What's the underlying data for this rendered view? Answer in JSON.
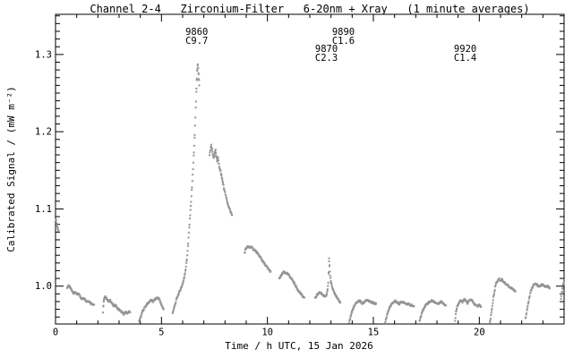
{
  "window": {
    "background": "#ffffff"
  },
  "chart_data": {
    "type": "scatter",
    "title": "Channel 2-4   Zirconium-Filter   6-20nm + Xray   (1 minute averages)",
    "xlabel": "Time / h UTC, 15 Jan 2026",
    "ylabel": "Calibrated Signal / (mW m⁻²)",
    "xlim": [
      0,
      24
    ],
    "ylim": [
      0.951,
      1.352
    ],
    "x_major_ticks": [
      0,
      5,
      10,
      15,
      20
    ],
    "x_tick_labels": [
      "0",
      "5",
      "10",
      "15",
      "20"
    ],
    "x_minor_step": 1,
    "y_major_ticks": [
      1.0,
      1.1,
      1.2,
      1.3
    ],
    "y_tick_labels": [
      "1.0",
      "1.1",
      "1.2",
      "1.3"
    ],
    "y_minor_step": 0.01,
    "grid": false,
    "legend": "none",
    "marker": "square-dot",
    "marker_size_px": 2,
    "sample_interval_h": 0.01667,
    "noise_amp": 0.0012,
    "colors": {
      "points": "#949494",
      "frame": "#000000",
      "text": "#000000",
      "background": "#ffffff"
    },
    "annotations": [
      {
        "region": "9860",
        "class": "C9.7",
        "t": 6.13,
        "row": 0
      },
      {
        "region": "9890",
        "class": "C1.6",
        "t": 13.05,
        "row": 0
      },
      {
        "region": "9870",
        "class": "C2.3",
        "t": 12.25,
        "row": 1
      },
      {
        "region": "9920",
        "class": "C1.4",
        "t": 18.8,
        "row": 1
      }
    ],
    "series": [
      {
        "name": "segment-01",
        "points": [
          [
            0.02,
            1.087
          ],
          [
            0.05,
            1.083
          ],
          [
            0.08,
            1.078
          ],
          [
            0.11,
            1.074
          ],
          [
            0.14,
            1.072
          ]
        ]
      },
      {
        "name": "segment-02",
        "points": [
          [
            0.55,
            0.998
          ],
          [
            0.62,
            1.0
          ],
          [
            0.7,
            0.998
          ],
          [
            0.78,
            0.994
          ],
          [
            0.86,
            0.991
          ],
          [
            0.94,
            0.992
          ],
          [
            1.02,
            0.989
          ],
          [
            1.1,
            0.99
          ],
          [
            1.18,
            0.986
          ],
          [
            1.26,
            0.983
          ],
          [
            1.34,
            0.985
          ],
          [
            1.42,
            0.982
          ],
          [
            1.5,
            0.98
          ],
          [
            1.58,
            0.981
          ],
          [
            1.66,
            0.978
          ],
          [
            1.74,
            0.977
          ],
          [
            1.82,
            0.976
          ]
        ]
      },
      {
        "name": "segment-03",
        "points": [
          [
            2.24,
            0.966
          ],
          [
            2.26,
            0.974
          ],
          [
            2.28,
            0.982
          ],
          [
            2.33,
            0.986
          ],
          [
            2.42,
            0.984
          ],
          [
            2.5,
            0.98
          ],
          [
            2.58,
            0.982
          ],
          [
            2.66,
            0.978
          ],
          [
            2.74,
            0.974
          ],
          [
            2.82,
            0.976
          ],
          [
            2.9,
            0.972
          ],
          [
            2.98,
            0.97
          ],
          [
            3.06,
            0.968
          ],
          [
            3.14,
            0.966
          ],
          [
            3.22,
            0.964
          ],
          [
            3.3,
            0.966
          ],
          [
            3.38,
            0.965
          ],
          [
            3.46,
            0.967
          ],
          [
            3.52,
            0.966
          ]
        ]
      },
      {
        "name": "segment-04",
        "points": [
          [
            3.93,
            0.952
          ],
          [
            3.98,
            0.957
          ],
          [
            4.04,
            0.962
          ],
          [
            4.12,
            0.968
          ],
          [
            4.2,
            0.972
          ],
          [
            4.3,
            0.976
          ],
          [
            4.4,
            0.979
          ],
          [
            4.5,
            0.982
          ],
          [
            4.6,
            0.98
          ],
          [
            4.7,
            0.983
          ],
          [
            4.8,
            0.985
          ],
          [
            4.88,
            0.984
          ],
          [
            4.94,
            0.98
          ],
          [
            5.0,
            0.976
          ],
          [
            5.06,
            0.972
          ],
          [
            5.1,
            0.97
          ]
        ]
      },
      {
        "name": "segment-05-flare",
        "points": [
          [
            5.53,
            0.966
          ],
          [
            5.6,
            0.972
          ],
          [
            5.68,
            0.98
          ],
          [
            5.76,
            0.987
          ],
          [
            5.84,
            0.992
          ],
          [
            5.9,
            0.996
          ],
          [
            5.96,
            1.0
          ],
          [
            6.02,
            1.005
          ],
          [
            6.08,
            1.012
          ],
          [
            6.14,
            1.022
          ],
          [
            6.2,
            1.035
          ],
          [
            6.26,
            1.055
          ],
          [
            6.32,
            1.08
          ],
          [
            6.38,
            1.103
          ],
          [
            6.44,
            1.128
          ],
          [
            6.49,
            1.152
          ],
          [
            6.53,
            1.172
          ],
          [
            6.57,
            1.196
          ],
          [
            6.6,
            1.218
          ],
          [
            6.63,
            1.24
          ],
          [
            6.65,
            1.255
          ],
          [
            6.67,
            1.268
          ],
          [
            6.69,
            1.28
          ],
          [
            6.71,
            1.287
          ],
          [
            6.73,
            1.282
          ],
          [
            6.75,
            1.274
          ],
          [
            6.77,
            1.266
          ],
          [
            6.78,
            1.26
          ]
        ]
      },
      {
        "name": "segment-06",
        "points": [
          [
            7.27,
            1.17
          ],
          [
            7.31,
            1.176
          ],
          [
            7.35,
            1.182
          ],
          [
            7.39,
            1.176
          ],
          [
            7.43,
            1.17
          ],
          [
            7.47,
            1.166
          ],
          [
            7.51,
            1.172
          ],
          [
            7.55,
            1.176
          ],
          [
            7.59,
            1.168
          ],
          [
            7.63,
            1.162
          ],
          [
            7.67,
            1.166
          ],
          [
            7.71,
            1.158
          ],
          [
            7.75,
            1.152
          ],
          [
            7.79,
            1.148
          ],
          [
            7.83,
            1.143
          ],
          [
            7.87,
            1.138
          ],
          [
            7.91,
            1.132
          ],
          [
            7.95,
            1.127
          ],
          [
            8.0,
            1.121
          ],
          [
            8.05,
            1.115
          ],
          [
            8.1,
            1.11
          ],
          [
            8.15,
            1.105
          ],
          [
            8.2,
            1.101
          ],
          [
            8.25,
            1.097
          ],
          [
            8.3,
            1.094
          ],
          [
            8.33,
            1.092
          ]
        ]
      },
      {
        "name": "segment-07",
        "points": [
          [
            8.92,
            1.043
          ],
          [
            8.97,
            1.048
          ],
          [
            9.02,
            1.05
          ],
          [
            9.08,
            1.051
          ],
          [
            9.15,
            1.05
          ],
          [
            9.22,
            1.051
          ],
          [
            9.3,
            1.049
          ],
          [
            9.38,
            1.047
          ],
          [
            9.46,
            1.045
          ],
          [
            9.54,
            1.042
          ],
          [
            9.62,
            1.039
          ],
          [
            9.7,
            1.036
          ],
          [
            9.78,
            1.032
          ],
          [
            9.86,
            1.029
          ],
          [
            9.94,
            1.026
          ],
          [
            10.02,
            1.023
          ],
          [
            10.08,
            1.021
          ],
          [
            10.15,
            1.019
          ]
        ]
      },
      {
        "name": "segment-08",
        "points": [
          [
            10.56,
            1.009
          ],
          [
            10.63,
            1.013
          ],
          [
            10.7,
            1.016
          ],
          [
            10.78,
            1.018
          ],
          [
            10.86,
            1.017
          ],
          [
            10.94,
            1.016
          ],
          [
            11.02,
            1.014
          ],
          [
            11.1,
            1.011
          ],
          [
            11.18,
            1.008
          ],
          [
            11.26,
            1.004
          ],
          [
            11.34,
            1.0
          ],
          [
            11.42,
            0.996
          ],
          [
            11.5,
            0.993
          ],
          [
            11.58,
            0.99
          ],
          [
            11.66,
            0.987
          ],
          [
            11.74,
            0.985
          ]
        ]
      },
      {
        "name": "segment-09-spike",
        "points": [
          [
            12.25,
            0.984
          ],
          [
            12.33,
            0.988
          ],
          [
            12.41,
            0.991
          ],
          [
            12.49,
            0.992
          ],
          [
            12.57,
            0.99
          ],
          [
            12.65,
            0.988
          ],
          [
            12.73,
            0.986
          ],
          [
            12.8,
            0.989
          ],
          [
            12.84,
            0.995
          ],
          [
            12.87,
            1.005
          ],
          [
            12.89,
            1.018
          ],
          [
            12.91,
            1.035
          ],
          [
            12.93,
            1.026
          ],
          [
            12.96,
            1.014
          ],
          [
            13.0,
            1.005
          ],
          [
            13.05,
            0.999
          ],
          [
            13.11,
            0.995
          ],
          [
            13.18,
            0.991
          ],
          [
            13.26,
            0.986
          ],
          [
            13.34,
            0.982
          ],
          [
            13.44,
            0.979
          ]
        ]
      },
      {
        "name": "segment-10",
        "points": [
          [
            13.86,
            0.953
          ],
          [
            13.92,
            0.96
          ],
          [
            13.99,
            0.967
          ],
          [
            14.06,
            0.972
          ],
          [
            14.14,
            0.976
          ],
          [
            14.22,
            0.979
          ],
          [
            14.31,
            0.981
          ],
          [
            14.4,
            0.98
          ],
          [
            14.48,
            0.977
          ],
          [
            14.56,
            0.979
          ],
          [
            14.65,
            0.982
          ],
          [
            14.74,
            0.981
          ],
          [
            14.83,
            0.98
          ],
          [
            14.92,
            0.979
          ],
          [
            15.02,
            0.978
          ],
          [
            15.13,
            0.977
          ]
        ]
      },
      {
        "name": "segment-11",
        "points": [
          [
            15.55,
            0.952
          ],
          [
            15.61,
            0.959
          ],
          [
            15.68,
            0.966
          ],
          [
            15.76,
            0.972
          ],
          [
            15.85,
            0.976
          ],
          [
            15.94,
            0.979
          ],
          [
            16.03,
            0.981
          ],
          [
            16.12,
            0.979
          ],
          [
            16.21,
            0.977
          ],
          [
            16.3,
            0.979
          ],
          [
            16.4,
            0.98
          ],
          [
            16.5,
            0.978
          ],
          [
            16.6,
            0.977
          ],
          [
            16.7,
            0.976
          ],
          [
            16.81,
            0.975
          ],
          [
            16.92,
            0.974
          ]
        ]
      },
      {
        "name": "segment-12",
        "points": [
          [
            17.18,
            0.954
          ],
          [
            17.24,
            0.961
          ],
          [
            17.31,
            0.967
          ],
          [
            17.39,
            0.972
          ],
          [
            17.48,
            0.976
          ],
          [
            17.57,
            0.978
          ],
          [
            17.66,
            0.98
          ],
          [
            17.76,
            0.981
          ],
          [
            17.86,
            0.98
          ],
          [
            17.96,
            0.978
          ],
          [
            18.06,
            0.977
          ],
          [
            18.16,
            0.98
          ],
          [
            18.26,
            0.979
          ],
          [
            18.34,
            0.977
          ],
          [
            18.42,
            0.975
          ]
        ]
      },
      {
        "name": "segment-13",
        "points": [
          [
            18.84,
            0.951
          ],
          [
            18.87,
            0.959
          ],
          [
            18.9,
            0.967
          ],
          [
            18.96,
            0.974
          ],
          [
            19.04,
            0.979
          ],
          [
            19.12,
            0.982
          ],
          [
            19.2,
            0.979
          ],
          [
            19.28,
            0.983
          ],
          [
            19.36,
            0.981
          ],
          [
            19.44,
            0.978
          ],
          [
            19.52,
            0.981
          ],
          [
            19.6,
            0.983
          ],
          [
            19.68,
            0.98
          ],
          [
            19.76,
            0.977
          ],
          [
            19.84,
            0.975
          ],
          [
            19.92,
            0.974
          ],
          [
            20.0,
            0.976
          ],
          [
            20.08,
            0.973
          ]
        ]
      },
      {
        "name": "segment-14",
        "points": [
          [
            20.5,
            0.953
          ],
          [
            20.55,
            0.962
          ],
          [
            20.6,
            0.972
          ],
          [
            20.65,
            0.982
          ],
          [
            20.7,
            0.991
          ],
          [
            20.75,
            0.999
          ],
          [
            20.8,
            1.004
          ],
          [
            20.86,
            1.007
          ],
          [
            20.93,
            1.009
          ],
          [
            21.0,
            1.007
          ],
          [
            21.07,
            1.009
          ],
          [
            21.14,
            1.006
          ],
          [
            21.22,
            1.004
          ],
          [
            21.3,
            1.002
          ],
          [
            21.38,
            1.0
          ],
          [
            21.46,
            0.998
          ],
          [
            21.54,
            0.997
          ],
          [
            21.62,
            0.995
          ],
          [
            21.7,
            0.993
          ]
        ]
      },
      {
        "name": "segment-15",
        "points": [
          [
            22.18,
            0.958
          ],
          [
            22.23,
            0.966
          ],
          [
            22.28,
            0.974
          ],
          [
            22.33,
            0.981
          ],
          [
            22.38,
            0.988
          ],
          [
            22.44,
            0.994
          ],
          [
            22.5,
            0.999
          ],
          [
            22.58,
            1.002
          ],
          [
            22.66,
            1.003
          ],
          [
            22.74,
            1.001
          ],
          [
            22.82,
            0.999
          ],
          [
            22.9,
            1.001
          ],
          [
            22.98,
            1.002
          ],
          [
            23.06,
            1.0
          ],
          [
            23.14,
            0.999
          ],
          [
            23.22,
            1.0
          ],
          [
            23.32,
            0.997
          ]
        ]
      },
      {
        "name": "segment-16",
        "points": [
          [
            23.85,
            0.983
          ],
          [
            23.89,
            0.991
          ],
          [
            23.93,
            0.998
          ],
          [
            23.97,
            1.004
          ],
          [
            24.0,
            1.008
          ]
        ]
      }
    ]
  }
}
